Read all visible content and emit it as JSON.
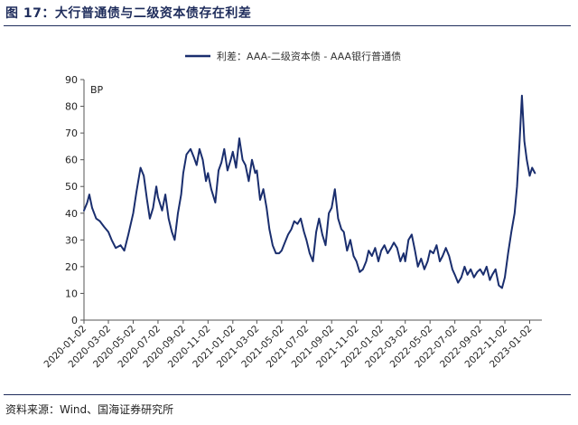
{
  "header": {
    "title": "图 17：大行普通债与二级资本债存在利差"
  },
  "footer": {
    "source": "资料来源：Wind、国海证券研究所"
  },
  "colors": {
    "series": "#1a2e6e",
    "axis": "#555555",
    "title": "#1f2d5c"
  },
  "chart_data": {
    "type": "line",
    "unit_label": "BP",
    "ylim": [
      0,
      90
    ],
    "y_ticks": [
      0,
      10,
      20,
      30,
      40,
      50,
      60,
      70,
      80,
      90
    ],
    "x_range": [
      "2020-01-02",
      "2023-02-01"
    ],
    "x_tick_labels": [
      "2020-01-02",
      "2020-03-02",
      "2020-05-02",
      "2020-07-02",
      "2020-09-02",
      "2020-11-02",
      "2021-01-02",
      "2021-03-02",
      "2021-05-02",
      "2021-07-02",
      "2021-09-02",
      "2021-11-02",
      "2022-01-02",
      "2022-03-02",
      "2022-05-02",
      "2022-07-02",
      "2022-09-02",
      "2022-11-02",
      "2023-01-02"
    ],
    "legend_position": "top-center",
    "grid": false,
    "series": [
      {
        "name": "利差：AAA-二级资本债 - AAA银行普通债",
        "points": [
          [
            "2020-01-02",
            41
          ],
          [
            "2020-01-10",
            44
          ],
          [
            "2020-01-15",
            47
          ],
          [
            "2020-01-22",
            42
          ],
          [
            "2020-02-01",
            38
          ],
          [
            "2020-02-10",
            37
          ],
          [
            "2020-02-20",
            35
          ],
          [
            "2020-03-02",
            33
          ],
          [
            "2020-03-10",
            30
          ],
          [
            "2020-03-20",
            27
          ],
          [
            "2020-04-01",
            28
          ],
          [
            "2020-04-10",
            26
          ],
          [
            "2020-04-20",
            32
          ],
          [
            "2020-05-02",
            40
          ],
          [
            "2020-05-10",
            48
          ],
          [
            "2020-05-20",
            57
          ],
          [
            "2020-05-28",
            54
          ],
          [
            "2020-06-05",
            45
          ],
          [
            "2020-06-12",
            38
          ],
          [
            "2020-06-20",
            42
          ],
          [
            "2020-06-28",
            50
          ],
          [
            "2020-07-02",
            46
          ],
          [
            "2020-07-12",
            41
          ],
          [
            "2020-07-20",
            47
          ],
          [
            "2020-07-28",
            38
          ],
          [
            "2020-08-05",
            33
          ],
          [
            "2020-08-12",
            30
          ],
          [
            "2020-08-20",
            40
          ],
          [
            "2020-08-28",
            47
          ],
          [
            "2020-09-02",
            55
          ],
          [
            "2020-09-10",
            62
          ],
          [
            "2020-09-20",
            64
          ],
          [
            "2020-09-28",
            61
          ],
          [
            "2020-10-05",
            58
          ],
          [
            "2020-10-12",
            64
          ],
          [
            "2020-10-20",
            60
          ],
          [
            "2020-10-28",
            52
          ],
          [
            "2020-11-02",
            55
          ],
          [
            "2020-11-10",
            49
          ],
          [
            "2020-11-20",
            44
          ],
          [
            "2020-11-28",
            56
          ],
          [
            "2020-12-05",
            59
          ],
          [
            "2020-12-12",
            64
          ],
          [
            "2020-12-20",
            56
          ],
          [
            "2020-12-28",
            60
          ],
          [
            "2021-01-02",
            63
          ],
          [
            "2021-01-10",
            57
          ],
          [
            "2021-01-18",
            68
          ],
          [
            "2021-01-26",
            60
          ],
          [
            "2021-02-02",
            58
          ],
          [
            "2021-02-10",
            52
          ],
          [
            "2021-02-18",
            60
          ],
          [
            "2021-02-26",
            55
          ],
          [
            "2021-03-02",
            56
          ],
          [
            "2021-03-10",
            45
          ],
          [
            "2021-03-18",
            49
          ],
          [
            "2021-03-26",
            42
          ],
          [
            "2021-04-02",
            34
          ],
          [
            "2021-04-10",
            28
          ],
          [
            "2021-04-18",
            25
          ],
          [
            "2021-04-26",
            25
          ],
          [
            "2021-05-02",
            26
          ],
          [
            "2021-05-10",
            29
          ],
          [
            "2021-05-18",
            32
          ],
          [
            "2021-05-26",
            34
          ],
          [
            "2021-06-02",
            37
          ],
          [
            "2021-06-10",
            36
          ],
          [
            "2021-06-18",
            38
          ],
          [
            "2021-06-26",
            33
          ],
          [
            "2021-07-02",
            30
          ],
          [
            "2021-07-10",
            25
          ],
          [
            "2021-07-18",
            22
          ],
          [
            "2021-07-26",
            33
          ],
          [
            "2021-08-02",
            38
          ],
          [
            "2021-08-10",
            32
          ],
          [
            "2021-08-18",
            28
          ],
          [
            "2021-08-26",
            40
          ],
          [
            "2021-09-02",
            42
          ],
          [
            "2021-09-10",
            49
          ],
          [
            "2021-09-18",
            38
          ],
          [
            "2021-09-26",
            34
          ],
          [
            "2021-10-02",
            33
          ],
          [
            "2021-10-10",
            26
          ],
          [
            "2021-10-18",
            30
          ],
          [
            "2021-10-26",
            24
          ],
          [
            "2021-11-02",
            22
          ],
          [
            "2021-11-10",
            18
          ],
          [
            "2021-11-18",
            19
          ],
          [
            "2021-11-26",
            22
          ],
          [
            "2021-12-02",
            26
          ],
          [
            "2021-12-10",
            24
          ],
          [
            "2021-12-18",
            27
          ],
          [
            "2021-12-26",
            22
          ],
          [
            "2022-01-02",
            26
          ],
          [
            "2022-01-10",
            28
          ],
          [
            "2022-01-18",
            25
          ],
          [
            "2022-01-26",
            27
          ],
          [
            "2022-02-02",
            29
          ],
          [
            "2022-02-10",
            27
          ],
          [
            "2022-02-18",
            22
          ],
          [
            "2022-02-26",
            25
          ],
          [
            "2022-03-02",
            22
          ],
          [
            "2022-03-10",
            30
          ],
          [
            "2022-03-18",
            32
          ],
          [
            "2022-03-26",
            26
          ],
          [
            "2022-04-02",
            20
          ],
          [
            "2022-04-10",
            23
          ],
          [
            "2022-04-18",
            19
          ],
          [
            "2022-04-26",
            22
          ],
          [
            "2022-05-02",
            26
          ],
          [
            "2022-05-10",
            25
          ],
          [
            "2022-05-18",
            28
          ],
          [
            "2022-05-26",
            22
          ],
          [
            "2022-06-02",
            24
          ],
          [
            "2022-06-10",
            27
          ],
          [
            "2022-06-18",
            24
          ],
          [
            "2022-06-26",
            19
          ],
          [
            "2022-07-02",
            17
          ],
          [
            "2022-07-10",
            14
          ],
          [
            "2022-07-18",
            16
          ],
          [
            "2022-07-26",
            20
          ],
          [
            "2022-08-02",
            17
          ],
          [
            "2022-08-10",
            19
          ],
          [
            "2022-08-18",
            16
          ],
          [
            "2022-08-26",
            18
          ],
          [
            "2022-09-02",
            19
          ],
          [
            "2022-09-10",
            17
          ],
          [
            "2022-09-18",
            20
          ],
          [
            "2022-09-26",
            15
          ],
          [
            "2022-10-02",
            17
          ],
          [
            "2022-10-10",
            19
          ],
          [
            "2022-10-18",
            13
          ],
          [
            "2022-10-26",
            12
          ],
          [
            "2022-11-02",
            16
          ],
          [
            "2022-11-10",
            25
          ],
          [
            "2022-11-18",
            33
          ],
          [
            "2022-11-26",
            40
          ],
          [
            "2022-12-02",
            50
          ],
          [
            "2022-12-08",
            66
          ],
          [
            "2022-12-14",
            84
          ],
          [
            "2022-12-20",
            67
          ],
          [
            "2022-12-26",
            60
          ],
          [
            "2023-01-02",
            54
          ],
          [
            "2023-01-08",
            57
          ],
          [
            "2023-01-15",
            55
          ]
        ]
      }
    ]
  }
}
